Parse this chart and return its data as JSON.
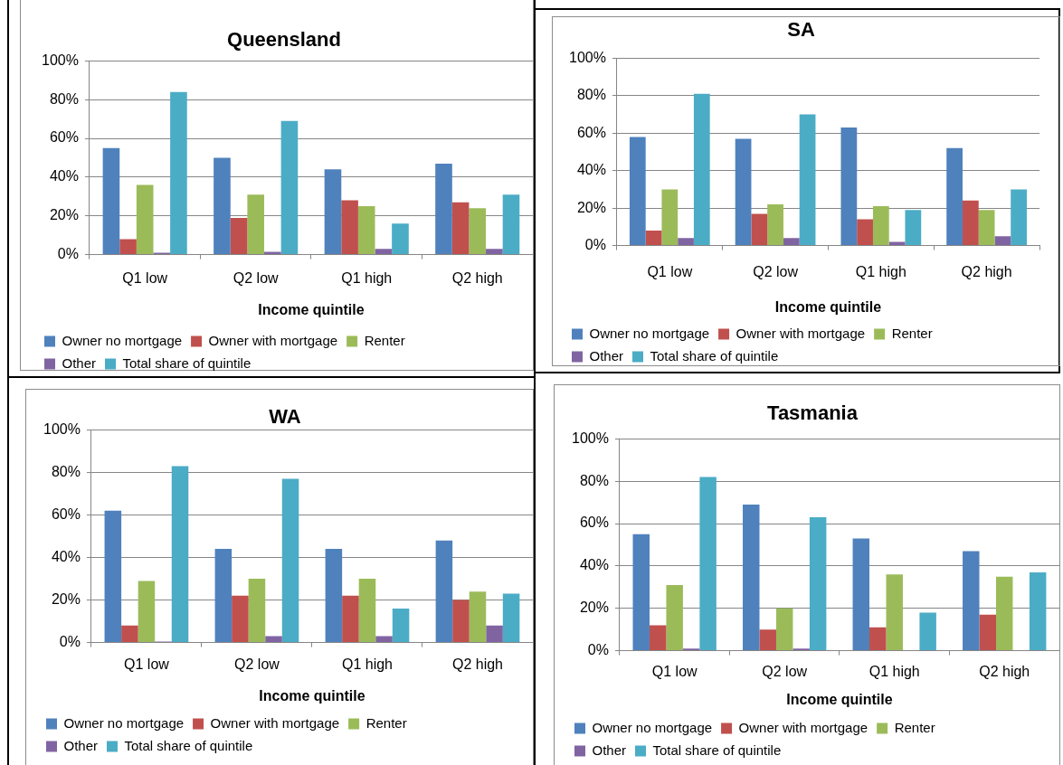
{
  "chart_data": [
    {
      "type": "bar",
      "title": "Queensland",
      "xlabel": "Income quintile",
      "categories": [
        "Q1 low",
        "Q2 low",
        "Q1 high",
        "Q2 high"
      ],
      "series": [
        {
          "name": "Owner no mortgage",
          "color": "#4f81bd",
          "values": [
            55,
            50,
            44,
            47
          ]
        },
        {
          "name": "Owner with mortgage",
          "color": "#c0504d",
          "values": [
            8,
            19,
            28,
            27
          ]
        },
        {
          "name": "Renter",
          "color": "#9bbb59",
          "values": [
            36,
            31,
            25,
            24
          ]
        },
        {
          "name": "Other",
          "color": "#8064a2",
          "values": [
            1,
            1.5,
            3,
            3
          ]
        },
        {
          "name": "Total share of quintile",
          "color": "#4bacc6",
          "values": [
            84,
            69,
            16,
            31
          ]
        }
      ],
      "ylim": [
        0,
        100
      ],
      "yticks": [
        {
          "value": 0,
          "label": "0%"
        },
        {
          "value": 20,
          "label": "20%"
        },
        {
          "value": 40,
          "label": "40%"
        },
        {
          "value": 60,
          "label": "60%"
        },
        {
          "value": 80,
          "label": "80%"
        },
        {
          "value": 100,
          "label": "100%"
        }
      ],
      "grid": "y",
      "legend": "bottom"
    },
    {
      "type": "bar",
      "title": "SA",
      "xlabel": "Income quintile",
      "categories": [
        "Q1 low",
        "Q2 low",
        "Q1 high",
        "Q2 high"
      ],
      "series": [
        {
          "name": "Owner no mortgage",
          "color": "#4f81bd",
          "values": [
            58,
            57,
            63,
            52
          ]
        },
        {
          "name": "Owner with mortgage",
          "color": "#c0504d",
          "values": [
            8,
            17,
            14,
            24
          ]
        },
        {
          "name": "Renter",
          "color": "#9bbb59",
          "values": [
            30,
            22,
            21,
            19
          ]
        },
        {
          "name": "Other",
          "color": "#8064a2",
          "values": [
            4,
            4,
            2,
            5
          ]
        },
        {
          "name": "Total share of quintile",
          "color": "#4bacc6",
          "values": [
            81,
            70,
            19,
            30
          ]
        }
      ],
      "ylim": [
        0,
        100
      ],
      "yticks": [
        {
          "value": 0,
          "label": "0%"
        },
        {
          "value": 20,
          "label": "20%"
        },
        {
          "value": 40,
          "label": "40%"
        },
        {
          "value": 60,
          "label": "60%"
        },
        {
          "value": 80,
          "label": "80%"
        },
        {
          "value": 100,
          "label": "100%"
        }
      ],
      "grid": "y",
      "legend": "bottom"
    },
    {
      "type": "bar",
      "title": "WA",
      "xlabel": "Income quintile",
      "categories": [
        "Q1 low",
        "Q2 low",
        "Q1 high",
        "Q2 high"
      ],
      "series": [
        {
          "name": "Owner no mortgage",
          "color": "#4f81bd",
          "values": [
            62,
            44,
            44,
            48
          ]
        },
        {
          "name": "Owner with mortgage",
          "color": "#c0504d",
          "values": [
            8,
            22,
            22,
            20
          ]
        },
        {
          "name": "Renter",
          "color": "#9bbb59",
          "values": [
            29,
            30,
            30,
            24
          ]
        },
        {
          "name": "Other",
          "color": "#8064a2",
          "values": [
            0.5,
            3,
            3,
            8
          ]
        },
        {
          "name": "Total share of quintile",
          "color": "#4bacc6",
          "values": [
            83,
            77,
            16,
            23
          ]
        }
      ],
      "ylim": [
        0,
        100
      ],
      "yticks": [
        {
          "value": 0,
          "label": "0%"
        },
        {
          "value": 20,
          "label": "20%"
        },
        {
          "value": 40,
          "label": "40%"
        },
        {
          "value": 60,
          "label": "60%"
        },
        {
          "value": 80,
          "label": "80%"
        },
        {
          "value": 100,
          "label": "100%"
        }
      ],
      "grid": "y",
      "legend": "bottom"
    },
    {
      "type": "bar",
      "title": "Tasmania",
      "xlabel": "Income quintile",
      "categories": [
        "Q1 low",
        "Q2 low",
        "Q1 high",
        "Q2 high"
      ],
      "series": [
        {
          "name": "Owner no mortgage",
          "color": "#4f81bd",
          "values": [
            55,
            69,
            53,
            47
          ]
        },
        {
          "name": "Owner with mortgage",
          "color": "#c0504d",
          "values": [
            12,
            10,
            11,
            17
          ]
        },
        {
          "name": "Renter",
          "color": "#9bbb59",
          "values": [
            31,
            20,
            36,
            35
          ]
        },
        {
          "name": "Other",
          "color": "#8064a2",
          "values": [
            1,
            1,
            0,
            0
          ]
        },
        {
          "name": "Total share of quintile",
          "color": "#4bacc6",
          "values": [
            82,
            63,
            18,
            37
          ]
        }
      ],
      "ylim": [
        0,
        100
      ],
      "yticks": [
        {
          "value": 0,
          "label": "0%"
        },
        {
          "value": 20,
          "label": "20%"
        },
        {
          "value": 40,
          "label": "40%"
        },
        {
          "value": 60,
          "label": "60%"
        },
        {
          "value": 80,
          "label": "80%"
        },
        {
          "value": 100,
          "label": "100%"
        }
      ],
      "grid": "y",
      "legend": "bottom"
    }
  ]
}
